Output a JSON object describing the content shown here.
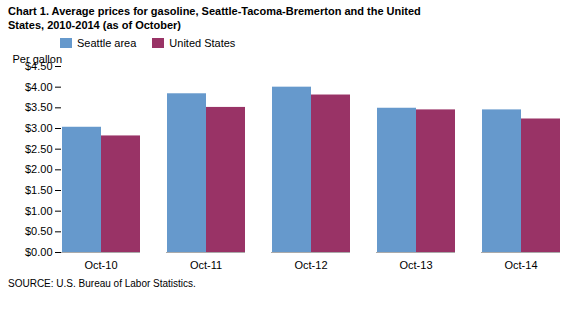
{
  "chart_data": {
    "type": "bar",
    "title": "Chart 1. Average prices for gasoline, Seattle-Tacoma-Bremerton and the United\nStates, 2010-2014  (as of October)",
    "ylabel": "Per gallon",
    "source": "SOURCE: U.S. Bureau of Labor Statistics.",
    "categories": [
      "Oct-10",
      "Oct-11",
      "Oct-12",
      "Oct-13",
      "Oct-14"
    ],
    "series": [
      {
        "name": "Seattle area",
        "color": "#6699cc",
        "values": [
          3.03,
          3.84,
          4.0,
          3.49,
          3.45
        ]
      },
      {
        "name": "United States",
        "color": "#993366",
        "values": [
          2.82,
          3.51,
          3.81,
          3.45,
          3.23
        ]
      }
    ],
    "ylim": [
      0,
      4.5
    ],
    "yticks": [
      {
        "value": 0.0,
        "label": "$0.00"
      },
      {
        "value": 0.5,
        "label": "$0.50"
      },
      {
        "value": 1.0,
        "label": "$1.00"
      },
      {
        "value": 1.5,
        "label": "$1.50"
      },
      {
        "value": 2.0,
        "label": "$2.00"
      },
      {
        "value": 2.5,
        "label": "$2.50"
      },
      {
        "value": 3.0,
        "label": "$3.00"
      },
      {
        "value": 3.5,
        "label": "$3.50"
      },
      {
        "value": 4.0,
        "label": "$4.00"
      },
      {
        "value": 4.5,
        "label": "$4.50"
      }
    ],
    "legend": "upper left",
    "grid": false
  }
}
